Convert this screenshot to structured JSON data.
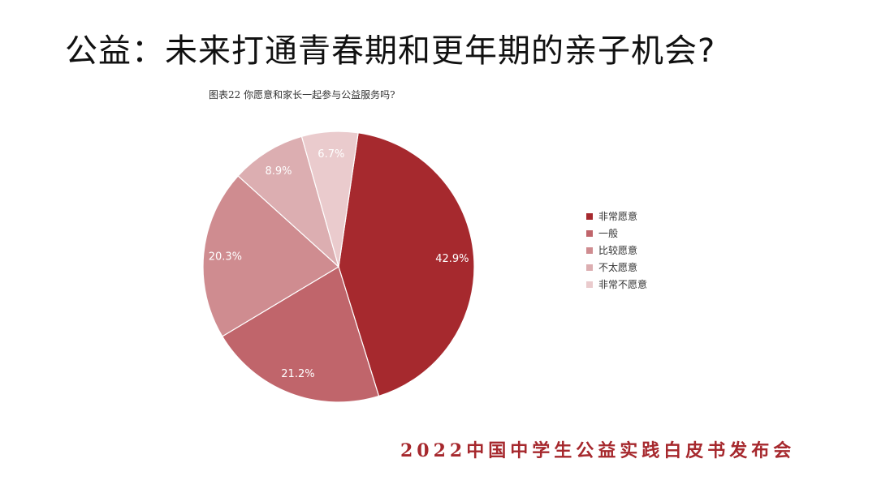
{
  "slide": {
    "title": "公益：未来打通青春期和更年期的亲子机会?",
    "footer": "2022中国中学生公益实践白皮书发布会"
  },
  "chart_data": {
    "type": "pie",
    "title": "图表22  你愿意和家长一起参与公益服务吗?",
    "slices": [
      {
        "label": "非常愿意",
        "value": 42.9,
        "display": "42.9%",
        "color": "#a6292e"
      },
      {
        "label": "一般",
        "value": 21.2,
        "display": "21.2%",
        "color": "#c0656b"
      },
      {
        "label": "比较愿意",
        "value": 20.3,
        "display": "20.3%",
        "color": "#cf8c90"
      },
      {
        "label": "不太愿意",
        "value": 8.9,
        "display": "8.9%",
        "color": "#dcaeb1"
      },
      {
        "label": "非常不愿意",
        "value": 6.7,
        "display": "6.7%",
        "color": "#eacbcd"
      }
    ],
    "legend_position": "right"
  }
}
